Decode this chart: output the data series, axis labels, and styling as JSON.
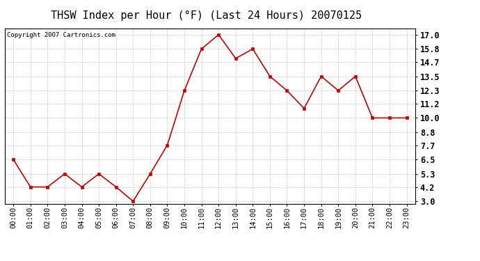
{
  "title": "THSW Index per Hour (°F) (Last 24 Hours) 20070125",
  "copyright": "Copyright 2007 Cartronics.com",
  "hours": [
    "00:00",
    "01:00",
    "02:00",
    "03:00",
    "04:00",
    "05:00",
    "06:00",
    "07:00",
    "08:00",
    "09:00",
    "10:00",
    "11:00",
    "12:00",
    "13:00",
    "14:00",
    "15:00",
    "16:00",
    "17:00",
    "18:00",
    "19:00",
    "20:00",
    "21:00",
    "22:00",
    "23:00"
  ],
  "values": [
    6.5,
    4.2,
    4.2,
    5.3,
    4.2,
    5.3,
    4.2,
    3.0,
    5.3,
    7.7,
    12.3,
    15.8,
    17.0,
    15.0,
    15.8,
    13.5,
    12.3,
    10.8,
    13.5,
    12.3,
    13.5,
    10.0,
    10.0,
    10.0
  ],
  "yticks": [
    3.0,
    4.2,
    5.3,
    6.5,
    7.7,
    8.8,
    10.0,
    11.2,
    12.3,
    13.5,
    14.7,
    15.8,
    17.0
  ],
  "ytick_labels": [
    "3.0",
    "4.2",
    "5.3",
    "6.5",
    "7.7",
    "8.8",
    "10.0",
    "11.2",
    "12.3",
    "13.5",
    "14.7",
    "15.8",
    "17.0"
  ],
  "ylim": [
    2.8,
    17.5
  ],
  "line_color": "#cc0000",
  "marker_color": "#cc0000",
  "bg_color": "#ffffff",
  "grid_color": "#bbbbbb",
  "title_fontsize": 11,
  "copyright_fontsize": 6.5,
  "tick_fontsize": 7.5,
  "ytick_fontsize": 8.5
}
